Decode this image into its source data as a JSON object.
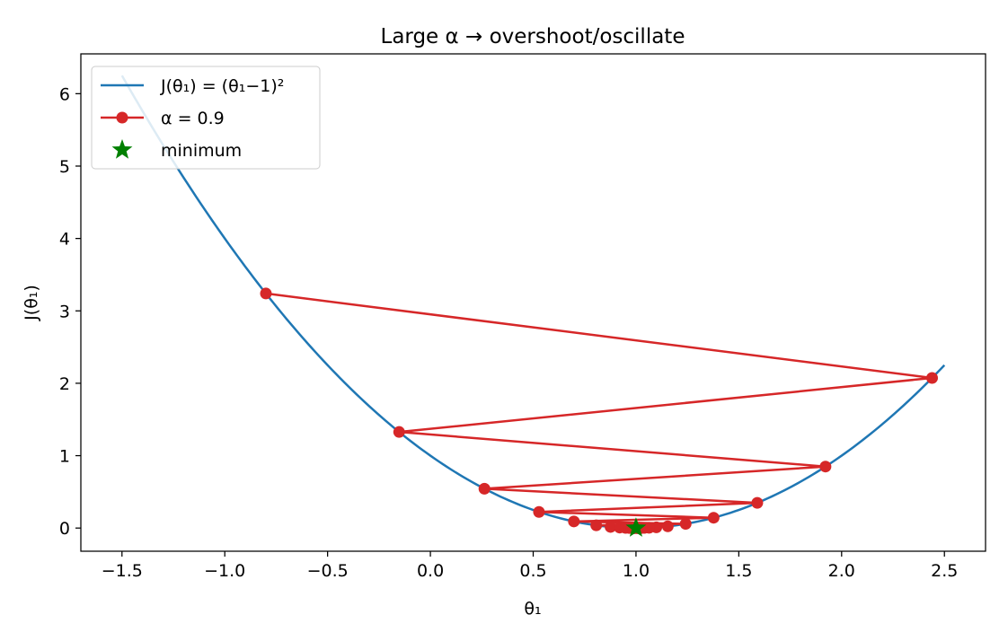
{
  "chart_data": {
    "type": "line",
    "title": "Large α → overshoot/oscillate",
    "xlabel": "θ₁",
    "ylabel": "J(θ₁)",
    "xlim": [
      -1.7,
      2.7
    ],
    "ylim": [
      -0.32,
      6.55
    ],
    "xticks": [
      -1.5,
      -1.0,
      -0.5,
      0.0,
      0.5,
      1.0,
      1.5,
      2.0,
      2.5
    ],
    "xtick_labels": [
      "−1.5",
      "−1.0",
      "−0.5",
      "0.0",
      "0.5",
      "1.0",
      "1.5",
      "2.0",
      "2.5"
    ],
    "yticks": [
      0,
      1,
      2,
      3,
      4,
      5,
      6
    ],
    "ytick_labels": [
      "0",
      "1",
      "2",
      "3",
      "4",
      "5",
      "6"
    ],
    "grid": false,
    "legend_position": "upper-left",
    "curve": {
      "name": "J(θ₁) = (θ₁−1)²",
      "color": "#1f77b4",
      "x_range": [
        -1.5,
        2.5
      ],
      "formula": "(x-1)^2"
    },
    "series": [
      {
        "name": "α = 0.9",
        "color": "#d62728",
        "x": [
          -0.8,
          2.44,
          -0.152,
          1.9216,
          0.26272,
          1.589824,
          0.528141,
          1.377487,
          0.69801,
          1.241592,
          0.806726,
          1.154619,
          0.876305,
          1.098956,
          0.920835,
          1.063332,
          0.949334,
          1.040533,
          0.967574,
          1.025941,
          0.979247,
          1.016602,
          0.986718,
          1.010626,
          0.991499,
          1.006801,
          0.994559,
          1.004353,
          0.996518,
          1.002786
        ],
        "y": [
          3.24,
          2.0736,
          1.327104,
          0.84934656,
          0.5435818,
          0.34789235,
          0.22265111,
          0.14249671,
          0.09119789,
          0.05836665,
          0.03735466,
          0.02390698,
          0.01530047,
          0.0097923,
          0.00626707,
          0.00401093,
          0.00256699,
          0.00164287,
          0.00105144,
          0.00067292,
          0.00043067,
          0.00027563,
          0.0001764,
          0.0001129,
          7.226e-05,
          4.625e-05,
          2.96e-05,
          1.894e-05,
          1.212e-05,
          7.76e-06
        ]
      }
    ],
    "marker": {
      "name": "minimum",
      "x": 1.0,
      "y": 0.0,
      "color": "#008000",
      "shape": "star"
    }
  }
}
